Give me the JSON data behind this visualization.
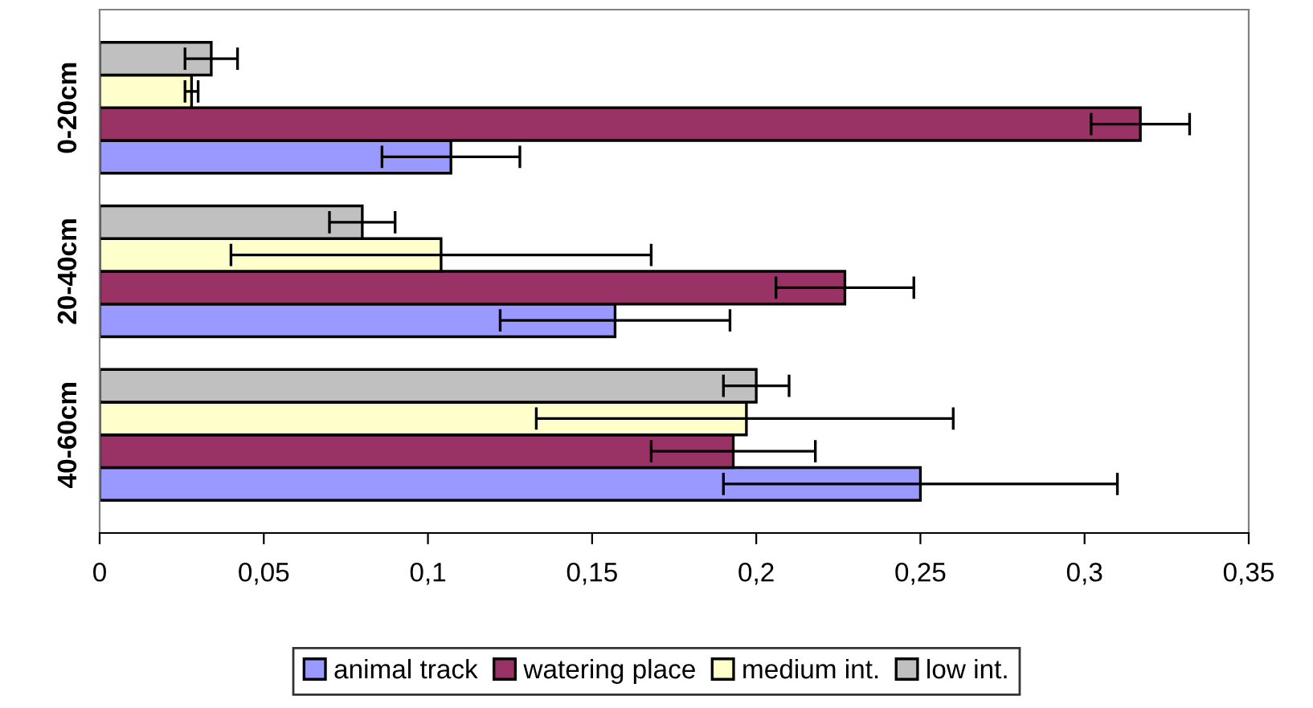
{
  "chart_data": {
    "type": "bar",
    "orientation": "horizontal",
    "categories": [
      "0-20cm",
      "20-40cm",
      "40-60cm"
    ],
    "series": [
      {
        "name": "animal track",
        "color": "#9999ff",
        "values": [
          0.107,
          0.157,
          0.25
        ],
        "errors": [
          [
            0.086,
            0.128
          ],
          [
            0.122,
            0.192
          ],
          [
            0.19,
            0.31
          ]
        ]
      },
      {
        "name": "watering place",
        "color": "#993366",
        "values": [
          0.317,
          0.227,
          0.193
        ],
        "errors": [
          [
            0.302,
            0.332
          ],
          [
            0.206,
            0.248
          ],
          [
            0.168,
            0.218
          ]
        ]
      },
      {
        "name": "medium int.",
        "color": "#ffffcc",
        "values": [
          0.028,
          0.104,
          0.197
        ],
        "errors": [
          [
            0.026,
            0.03
          ],
          [
            0.04,
            0.168
          ],
          [
            0.133,
            0.26
          ]
        ]
      },
      {
        "name": "low int.",
        "color": "#c0c0c0",
        "values": [
          0.034,
          0.08,
          0.2
        ],
        "errors": [
          [
            0.026,
            0.042
          ],
          [
            0.07,
            0.09
          ],
          [
            0.19,
            0.21
          ]
        ]
      }
    ],
    "xlim": [
      0,
      0.35
    ],
    "xticks": [
      0,
      {
        "value": 0.05,
        "label": "0,05"
      },
      {
        "value": 0.1,
        "label": "0,1"
      },
      {
        "value": 0.15,
        "label": "0,15"
      },
      {
        "value": 0.2,
        "label": "0,2"
      },
      {
        "value": 0.25,
        "label": "0,25"
      },
      {
        "value": 0.3,
        "label": "0,3"
      },
      {
        "value": 0.35,
        "label": "0,35"
      }
    ],
    "legend": "bottom",
    "grid": false
  }
}
